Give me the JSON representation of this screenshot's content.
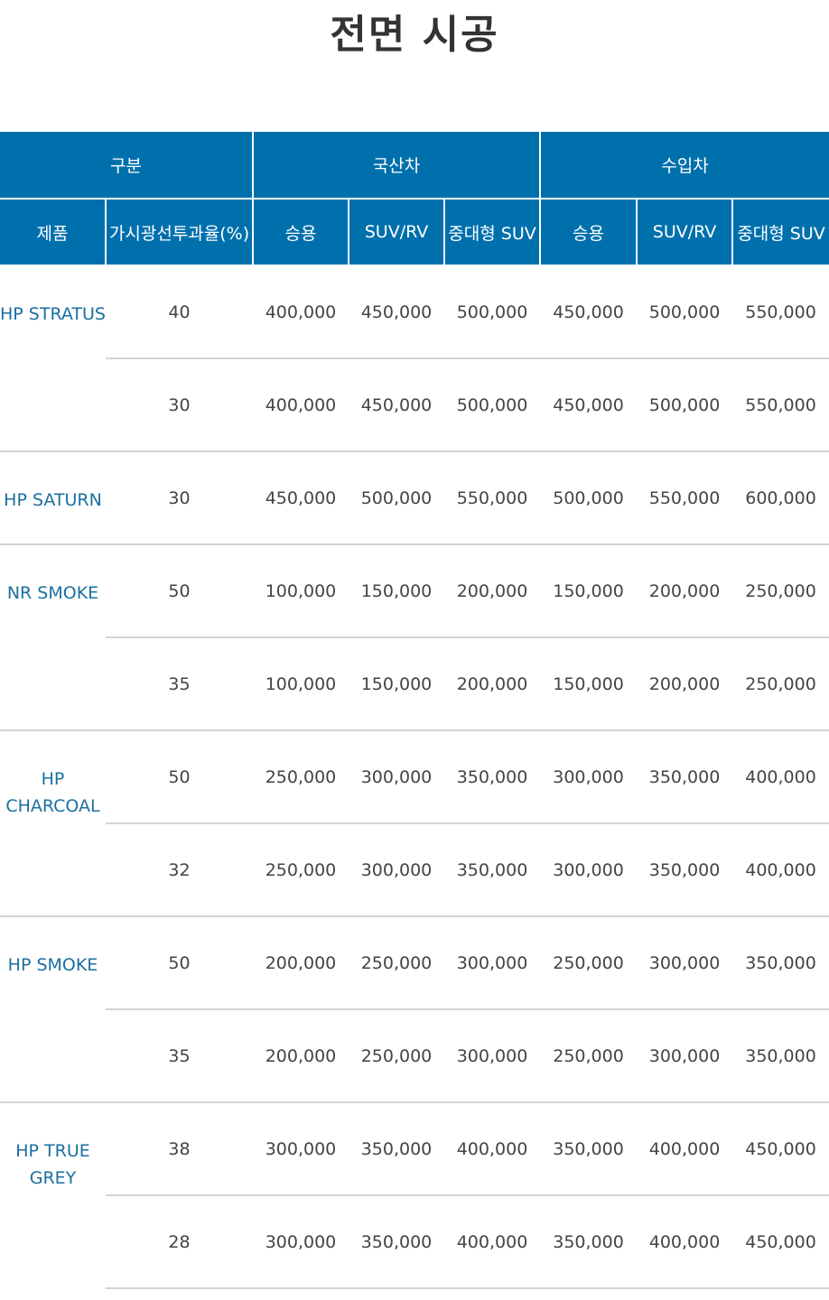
{
  "title": "전면 시공",
  "header": {
    "group_label": "구분",
    "domestic_label": "국산차",
    "import_label": "수입차",
    "product_label": "제품",
    "vlt_label": "가시광선투과율(%)",
    "sedan_label": "승용",
    "suvrv_label": "SUV/RV",
    "midlarge_label": "중대형 SUV",
    "import_sedan_label": "승용",
    "import_suvrv_label": "SUV/RV",
    "import_midlarge_label": "중대형 SUV"
  },
  "products": [
    {
      "name": "HP STRATUS",
      "rows": [
        {
          "vlt": "40",
          "prices": [
            "400,000",
            "450,000",
            "500,000",
            "450,000",
            "500,000",
            "550,000"
          ]
        },
        {
          "vlt": "30",
          "prices": [
            "400,000",
            "450,000",
            "500,000",
            "450,000",
            "500,000",
            "550,000"
          ]
        }
      ]
    },
    {
      "name": "HP SATURN",
      "rows": [
        {
          "vlt": "30",
          "prices": [
            "450,000",
            "500,000",
            "550,000",
            "500,000",
            "550,000",
            "600,000"
          ]
        }
      ]
    },
    {
      "name": "NR SMOKE",
      "rows": [
        {
          "vlt": "50",
          "prices": [
            "100,000",
            "150,000",
            "200,000",
            "150,000",
            "200,000",
            "250,000"
          ]
        },
        {
          "vlt": "35",
          "prices": [
            "100,000",
            "150,000",
            "200,000",
            "150,000",
            "200,000",
            "250,000"
          ]
        }
      ]
    },
    {
      "name": "HP CHARCOAL",
      "rows": [
        {
          "vlt": "50",
          "prices": [
            "250,000",
            "300,000",
            "350,000",
            "300,000",
            "350,000",
            "400,000"
          ]
        },
        {
          "vlt": "32",
          "prices": [
            "250,000",
            "300,000",
            "350,000",
            "300,000",
            "350,000",
            "400,000"
          ]
        }
      ]
    },
    {
      "name": "HP SMOKE",
      "rows": [
        {
          "vlt": "50",
          "prices": [
            "200,000",
            "250,000",
            "300,000",
            "250,000",
            "300,000",
            "350,000"
          ]
        },
        {
          "vlt": "35",
          "prices": [
            "200,000",
            "250,000",
            "300,000",
            "250,000",
            "300,000",
            "350,000"
          ]
        }
      ]
    },
    {
      "name": "HP TRUE GREY",
      "rows": [
        {
          "vlt": "38",
          "prices": [
            "300,000",
            "350,000",
            "400,000",
            "350,000",
            "400,000",
            "450,000"
          ]
        },
        {
          "vlt": "28",
          "prices": [
            "300,000",
            "350,000",
            "400,000",
            "350,000",
            "400,000",
            "450,000"
          ]
        }
      ]
    }
  ]
}
